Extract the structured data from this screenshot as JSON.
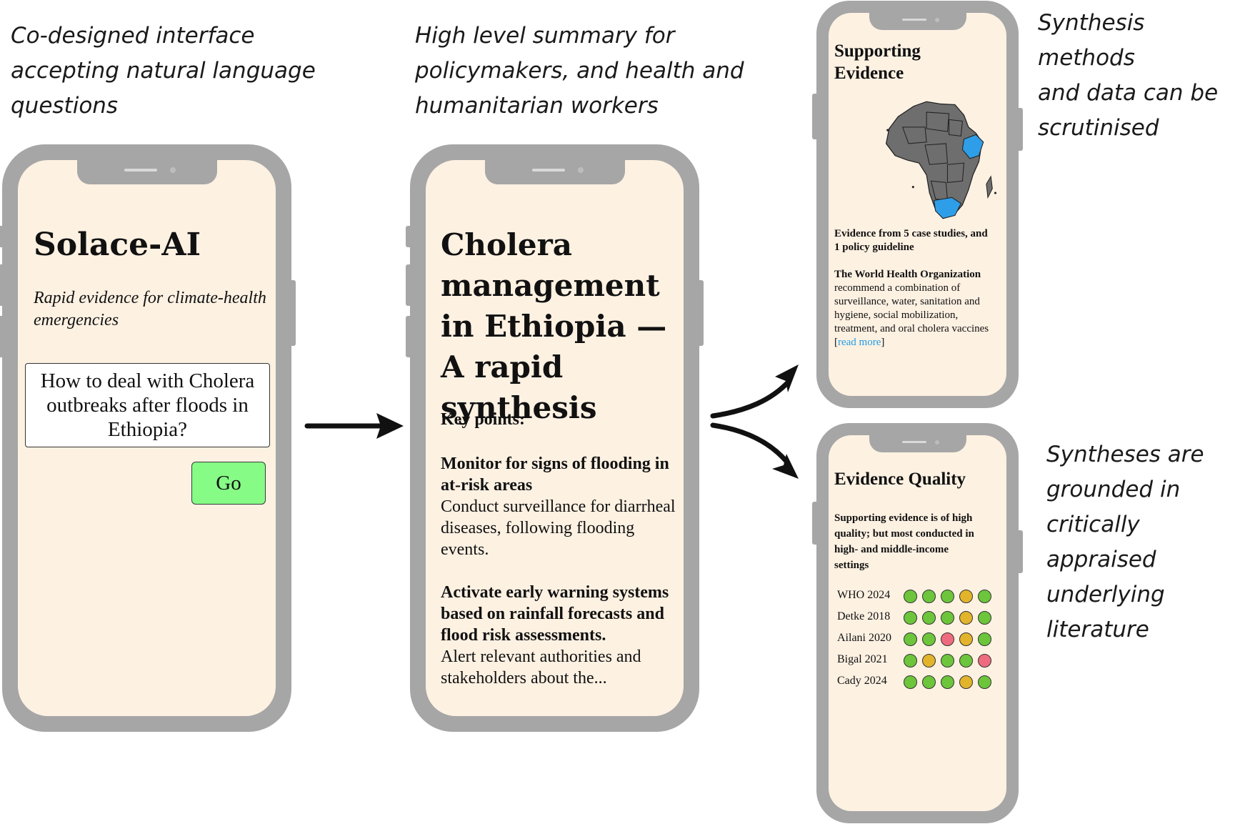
{
  "captions": {
    "left": [
      "Co-designed interface",
      "accepting natural language",
      "questions"
    ],
    "middle": [
      "High level summary for",
      "policymakers, and health and",
      "humanitarian workers"
    ],
    "right_top": [
      "Synthesis methods",
      "and data can be",
      "scrutinised"
    ],
    "right_bottom": [
      "Syntheses are",
      "grounded in",
      "critically appraised",
      "underlying",
      "literature"
    ]
  },
  "phone1": {
    "title": "Solace-AI",
    "subtitle": "Rapid evidence for climate-health emergencies",
    "question": "How to deal with Cholera outbreaks after floods in Ethiopia?",
    "go_label": "Go"
  },
  "phone2": {
    "title": "Cholera management in Ethiopia — A rapid synthesis",
    "key_points_heading": "Key points:",
    "points": [
      {
        "heading": "Monitor for signs of flooding in at-risk areas",
        "body": "Conduct surveillance for diarrheal diseases, following flooding events."
      },
      {
        "heading": "Activate early warning systems based on rainfall forecasts and flood risk assessments.",
        "body": "Alert relevant authorities and stakeholders about the..."
      }
    ]
  },
  "phone3": {
    "title": "Supporting Evidence",
    "evidence_count": "Evidence from 5 case studies, and 1 policy guideline",
    "who_heading": "The World Health Organization",
    "who_text": "recommend  a combination of surveillance, water, sanitation and hygiene, social mobilization, treatment, and oral cholera vaccines",
    "read_more_open": "[",
    "read_more": "read more",
    "read_more_close": "]",
    "map_highlight_color": "#2e9ee8"
  },
  "phone4": {
    "title": "Evidence Quality",
    "summary": "Supporting evidence is of high quality; but most conducted in high- and middle-income settings",
    "ratings": [
      {
        "source": "WHO 2024",
        "dots": [
          "green",
          "green",
          "green",
          "amber",
          "green"
        ]
      },
      {
        "source": "Detke 2018",
        "dots": [
          "green",
          "green",
          "green",
          "amber",
          "green"
        ]
      },
      {
        "source": "Ailani 2020",
        "dots": [
          "green",
          "green",
          "red",
          "amber",
          "green"
        ]
      },
      {
        "source": "Bigal 2021",
        "dots": [
          "green",
          "amber",
          "green",
          "green",
          "red"
        ]
      },
      {
        "source": "Cady 2024",
        "dots": [
          "green",
          "green",
          "green",
          "amber",
          "green"
        ]
      }
    ],
    "colors": {
      "green": "#6cc53b",
      "amber": "#e2b42b",
      "red": "#ee6b7f"
    }
  }
}
